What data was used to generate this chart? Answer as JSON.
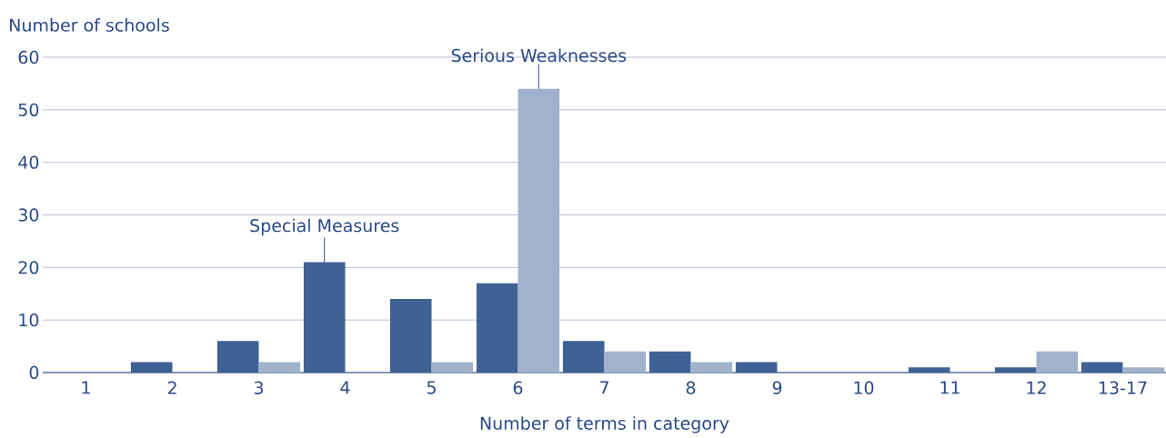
{
  "chart_data": {
    "type": "bar",
    "xlabel": "Number of terms in category",
    "ylabel": "Number of schools",
    "categories": [
      "1",
      "2",
      "3",
      "4",
      "5",
      "6",
      "7",
      "8",
      "9",
      "10",
      "11",
      "12",
      "13-17"
    ],
    "series": [
      {
        "color": "#406194",
        "values": [
          0,
          2,
          6,
          21,
          14,
          17,
          6,
          4,
          2,
          0,
          1,
          1,
          2
        ]
      },
      {
        "color": "#a0b1cb",
        "values": [
          0,
          0,
          2,
          0,
          2,
          54,
          4,
          2,
          0,
          0,
          0,
          4,
          1
        ]
      }
    ],
    "ylim": [
      0,
      60
    ],
    "yticks": [
      0,
      10,
      20,
      30,
      40,
      50,
      60
    ],
    "grid": "y",
    "annotations": [
      {
        "text": "Special Measures",
        "x": "4",
        "y": 21
      },
      {
        "text": "Serious Weaknesses",
        "x": "6",
        "y": 54
      }
    ]
  }
}
